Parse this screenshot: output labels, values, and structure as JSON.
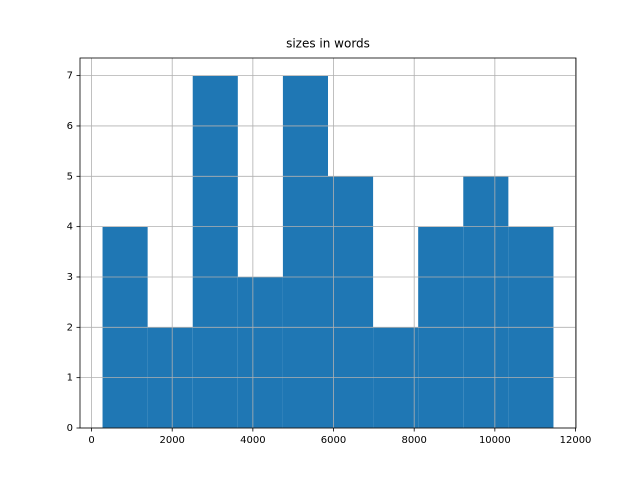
{
  "chart_data": {
    "type": "histogram",
    "title": "sizes in words",
    "bins": [
      273,
      1391,
      2509,
      3627,
      4745,
      5863,
      6981,
      8099,
      9217,
      10335,
      11453
    ],
    "values": [
      4,
      2,
      7,
      3,
      7,
      5,
      2,
      4,
      5,
      4
    ],
    "color": "#1f77b4",
    "xlim": [
      -286,
      12012
    ],
    "xticks": [
      0,
      2000,
      4000,
      6000,
      8000,
      10000,
      12000
    ],
    "ylim": [
      0,
      7.35
    ],
    "yticks": [
      0,
      1,
      2,
      3,
      4,
      5,
      6,
      7
    ],
    "grid": true
  }
}
